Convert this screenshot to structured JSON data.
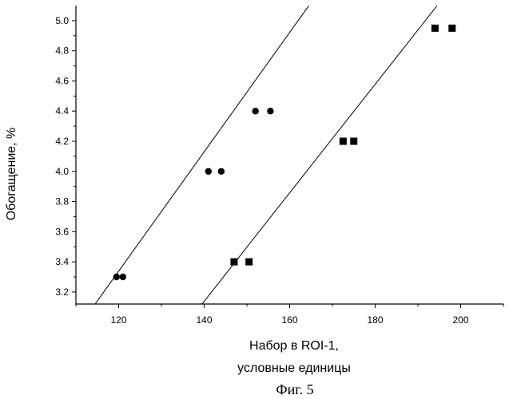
{
  "chart_data": {
    "type": "scatter",
    "ylabel": "Обогащение, %",
    "xlabel_line1": "Набор в ROI-1,",
    "xlabel_line2": "условные единицы",
    "caption": "Фиг. 5",
    "xlim": [
      110,
      210
    ],
    "ylim": [
      3.12,
      5.1
    ],
    "x_ticks": [
      120,
      140,
      160,
      180,
      200
    ],
    "y_ticks": [
      3.2,
      3.4,
      3.6,
      3.8,
      4.0,
      4.2,
      4.4,
      4.6,
      4.8,
      5.0
    ],
    "x_tick_labels": [
      "120",
      "140",
      "160",
      "180",
      "200"
    ],
    "y_tick_labels": [
      "3.2",
      "3.4",
      "3.6",
      "3.8",
      "4.0",
      "4.2",
      "4.4",
      "4.6",
      "4.8",
      "5.0"
    ],
    "series": [
      {
        "marker": "circle",
        "points": [
          {
            "x": 119.5,
            "y": 3.3
          },
          {
            "x": 121.0,
            "y": 3.3
          },
          {
            "x": 141.0,
            "y": 4.0
          },
          {
            "x": 144.0,
            "y": 4.0
          },
          {
            "x": 152.0,
            "y": 4.4
          },
          {
            "x": 155.5,
            "y": 4.4
          }
        ],
        "fit_line": [
          {
            "x": 114.5,
            "y": 3.12
          },
          {
            "x": 164.5,
            "y": 5.1
          }
        ]
      },
      {
        "marker": "square",
        "points": [
          {
            "x": 147.0,
            "y": 3.4
          },
          {
            "x": 150.5,
            "y": 3.4
          },
          {
            "x": 172.5,
            "y": 4.2
          },
          {
            "x": 175.0,
            "y": 4.2
          },
          {
            "x": 194.0,
            "y": 4.95
          },
          {
            "x": 198.0,
            "y": 4.95
          }
        ],
        "fit_line": [
          {
            "x": 139.5,
            "y": 3.12
          },
          {
            "x": 194.5,
            "y": 5.1
          }
        ]
      }
    ],
    "grid": false,
    "legend": false,
    "colors": {
      "ink": "#000000",
      "background": "#ffffff"
    }
  }
}
